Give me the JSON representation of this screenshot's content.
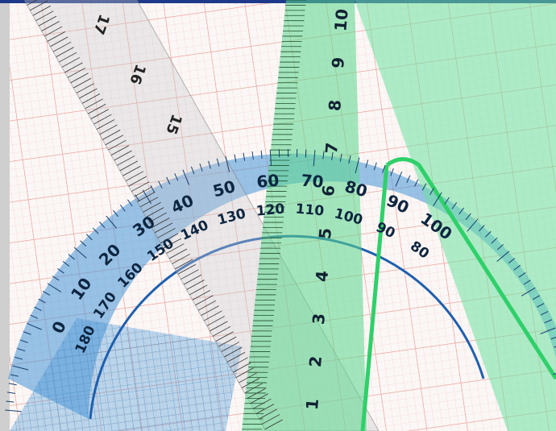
{
  "protractor": {
    "outer_labels": [
      "0",
      "10",
      "20",
      "30",
      "40",
      "50",
      "60",
      "70",
      "80",
      "90",
      "100"
    ],
    "inner_labels": [
      "180",
      "170",
      "160",
      "150",
      "140",
      "130",
      "120",
      "110",
      "100",
      "90",
      "80"
    ]
  },
  "clear_ruler": {
    "labels": [
      "17",
      "16",
      "15"
    ]
  },
  "green_ruler": {
    "labels": [
      "10",
      "9",
      "8",
      "7",
      "6",
      "5",
      "4",
      "3",
      "2",
      "1"
    ]
  }
}
